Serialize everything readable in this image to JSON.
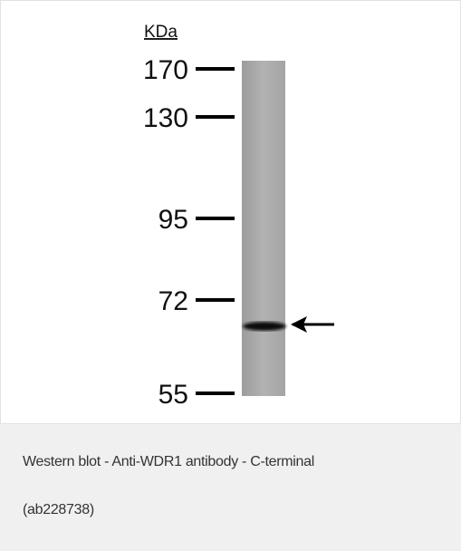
{
  "figure": {
    "unit_label": "KDa",
    "markers": [
      "170",
      "130",
      "95",
      "72",
      "55"
    ]
  },
  "caption": {
    "line1": "Western blot - Anti-WDR1 antibody - C-terminal",
    "line2": "(ab228738)"
  }
}
